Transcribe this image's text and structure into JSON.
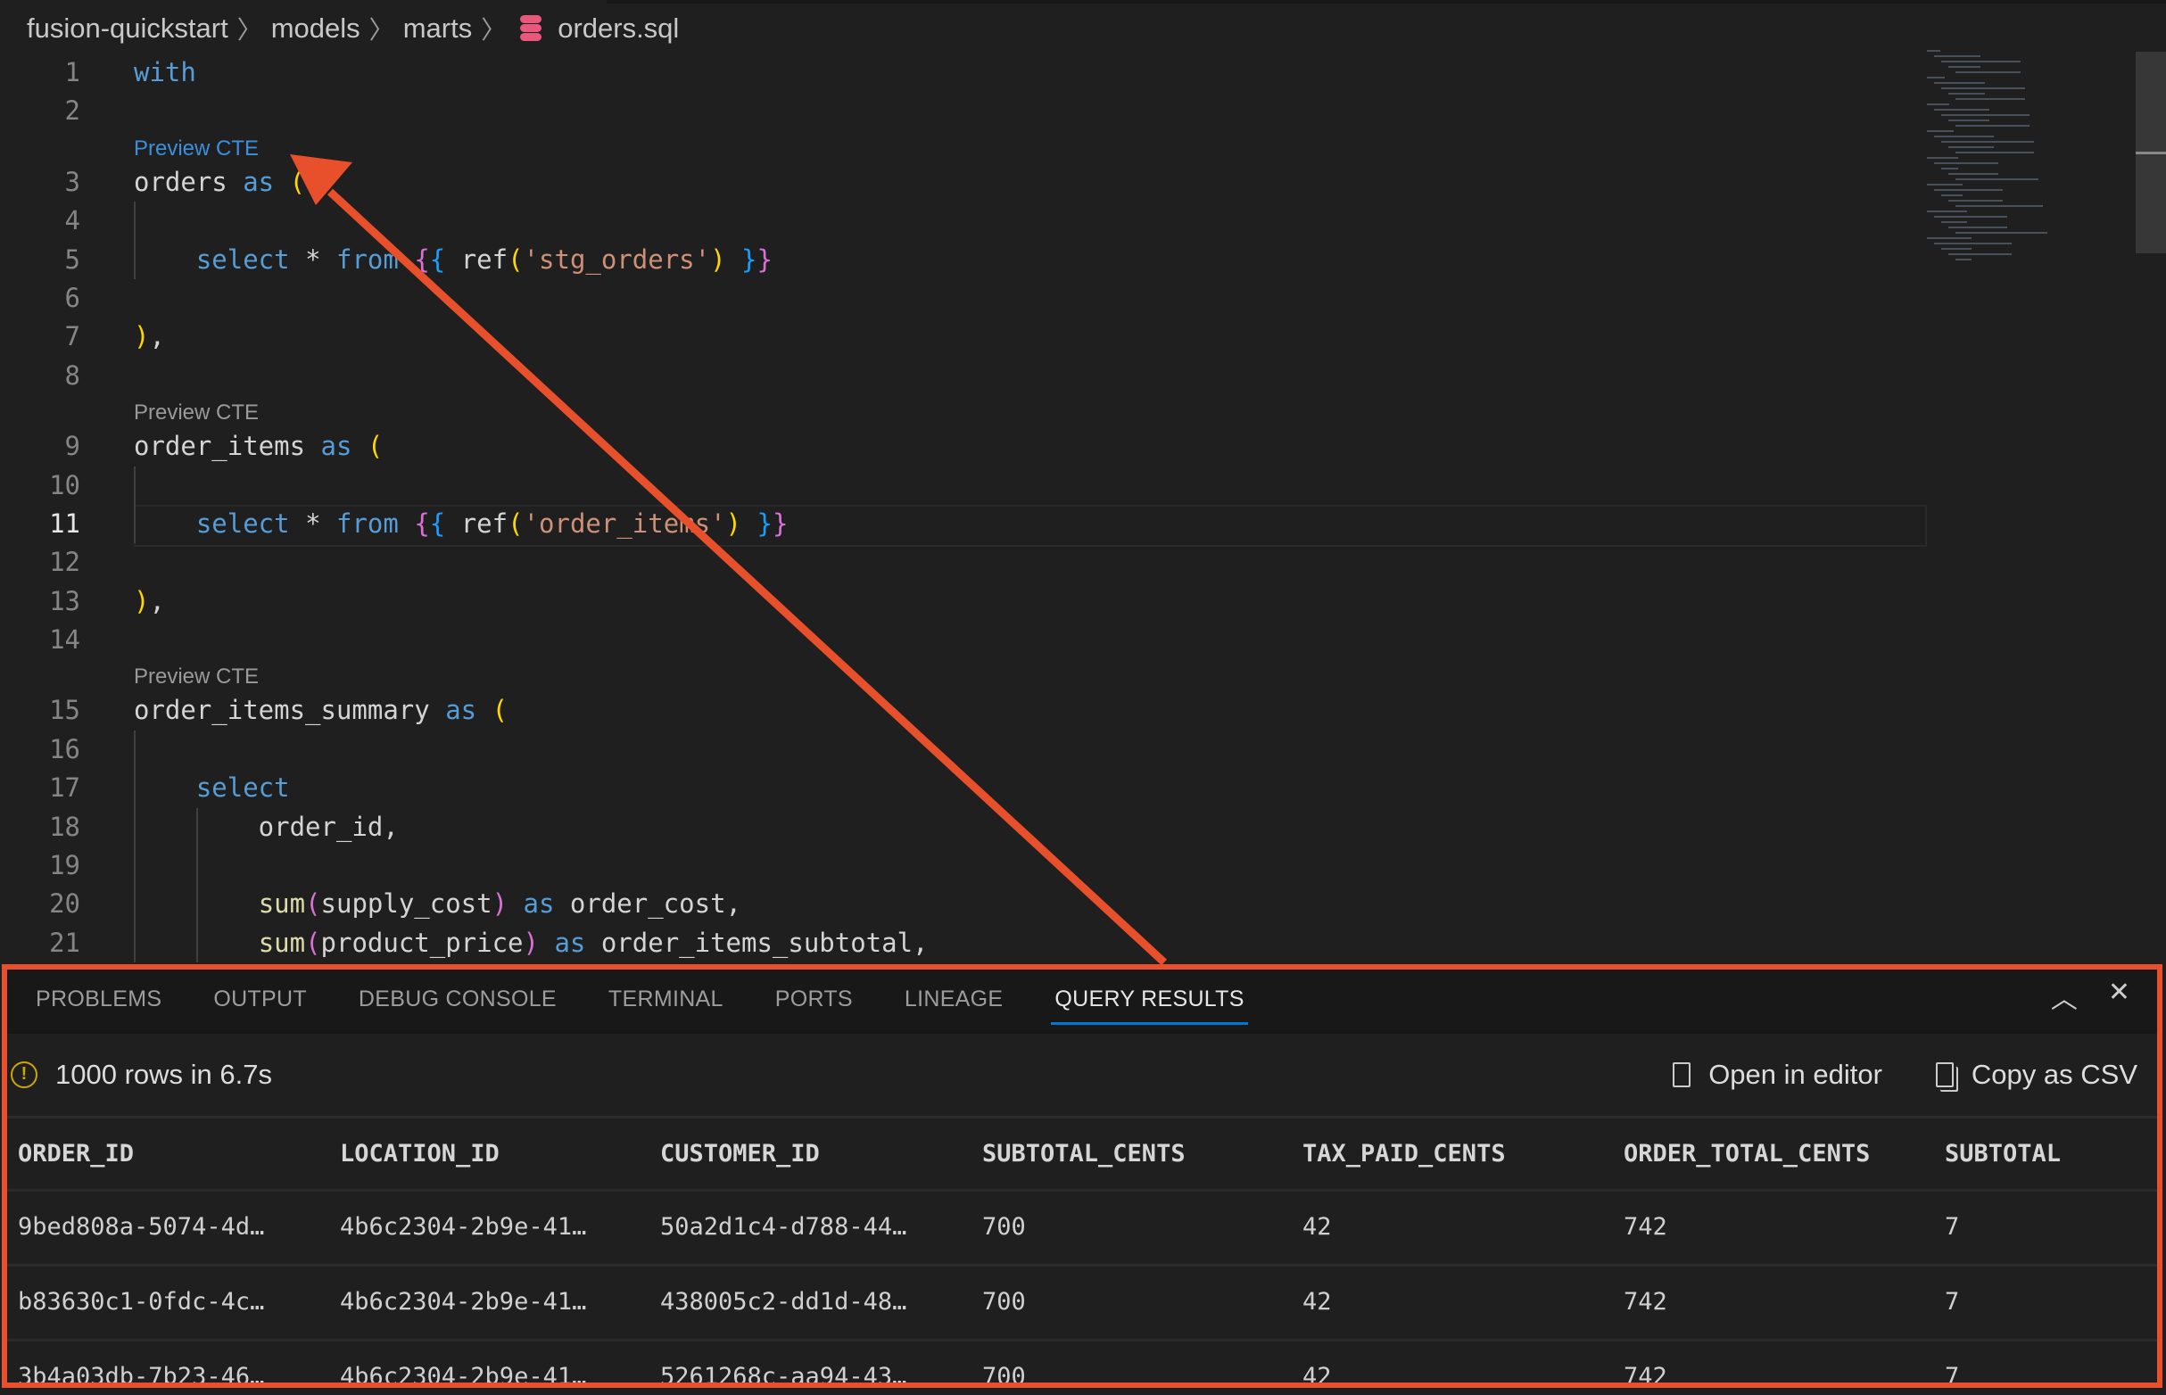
{
  "breadcrumb": [
    "fusion-quickstart",
    "models",
    "marts",
    "orders.sql"
  ],
  "editor": {
    "current_line": 11,
    "lines": [
      {
        "n": 1,
        "t": [
          [
            "with",
            "kw"
          ]
        ]
      },
      {
        "n": 2,
        "t": []
      },
      {
        "preview": "Preview CTE",
        "hot": true
      },
      {
        "n": 3,
        "t": [
          [
            "orders ",
            ""
          ],
          [
            "as",
            "kw"
          ],
          [
            " ",
            ""
          ],
          [
            "(",
            "py"
          ]
        ]
      },
      {
        "n": 4,
        "t": []
      },
      {
        "n": 5,
        "t": [
          [
            "    ",
            ""
          ],
          [
            "select",
            "kw"
          ],
          [
            " * ",
            ""
          ],
          [
            "from",
            "kw"
          ],
          [
            " ",
            ""
          ],
          [
            "{",
            "pp"
          ],
          [
            "{",
            "pb"
          ],
          [
            " ref",
            ""
          ],
          [
            "(",
            "py"
          ],
          [
            "'stg_orders'",
            "str"
          ],
          [
            ")",
            "py"
          ],
          [
            " ",
            ""
          ],
          [
            "}",
            "pb"
          ],
          [
            "}",
            "pp"
          ]
        ]
      },
      {
        "n": 6,
        "t": []
      },
      {
        "n": 7,
        "t": [
          [
            ")",
            "py"
          ],
          [
            ",",
            ""
          ]
        ]
      },
      {
        "n": 8,
        "t": []
      },
      {
        "preview": "Preview CTE"
      },
      {
        "n": 9,
        "t": [
          [
            "order_items ",
            ""
          ],
          [
            "as",
            "kw"
          ],
          [
            " ",
            ""
          ],
          [
            "(",
            "py"
          ]
        ]
      },
      {
        "n": 10,
        "t": []
      },
      {
        "n": 11,
        "t": [
          [
            "    ",
            ""
          ],
          [
            "select",
            "kw"
          ],
          [
            " * ",
            ""
          ],
          [
            "from",
            "kw"
          ],
          [
            " ",
            ""
          ],
          [
            "{",
            "pp"
          ],
          [
            "{",
            "pb"
          ],
          [
            " ref",
            ""
          ],
          [
            "(",
            "py"
          ],
          [
            "'order_items'",
            "str"
          ],
          [
            ")",
            "py"
          ],
          [
            " ",
            ""
          ],
          [
            "}",
            "pb"
          ],
          [
            "}",
            "pp"
          ]
        ]
      },
      {
        "n": 12,
        "t": []
      },
      {
        "n": 13,
        "t": [
          [
            ")",
            "py"
          ],
          [
            ",",
            ""
          ]
        ]
      },
      {
        "n": 14,
        "t": []
      },
      {
        "preview": "Preview CTE"
      },
      {
        "n": 15,
        "t": [
          [
            "order_items_summary ",
            ""
          ],
          [
            "as",
            "kw"
          ],
          [
            " ",
            ""
          ],
          [
            "(",
            "py"
          ]
        ]
      },
      {
        "n": 16,
        "t": []
      },
      {
        "n": 17,
        "t": [
          [
            "    ",
            ""
          ],
          [
            "select",
            "kw"
          ]
        ]
      },
      {
        "n": 18,
        "t": [
          [
            "        order_id,",
            ""
          ]
        ]
      },
      {
        "n": 19,
        "t": []
      },
      {
        "n": 20,
        "t": [
          [
            "        ",
            ""
          ],
          [
            "sum",
            "fn"
          ],
          [
            "(",
            "pp"
          ],
          [
            "supply_cost",
            ""
          ],
          [
            ")",
            "pp"
          ],
          [
            " ",
            ""
          ],
          [
            "as",
            "kw"
          ],
          [
            " order_cost,",
            ""
          ]
        ]
      },
      {
        "n": 21,
        "t": [
          [
            "        ",
            ""
          ],
          [
            "sum",
            "fn"
          ],
          [
            "(",
            "pp"
          ],
          [
            "product_price",
            ""
          ],
          [
            ")",
            "pp"
          ],
          [
            " ",
            ""
          ],
          [
            "as",
            "kw"
          ],
          [
            " order_items_subtotal,",
            ""
          ]
        ]
      }
    ]
  },
  "panel": {
    "tabs": [
      "PROBLEMS",
      "OUTPUT",
      "DEBUG CONSOLE",
      "TERMINAL",
      "PORTS",
      "LINEAGE",
      "QUERY RESULTS"
    ],
    "active_tab": "QUERY RESULTS",
    "controls": {
      "maximize_icon": "chevron-up-icon",
      "close_icon": "close-icon"
    },
    "status": {
      "icon": "warning-icon",
      "text": "1000 rows in 6.7s"
    },
    "actions": {
      "open_in_editor": "Open in editor",
      "copy_csv": "Copy as CSV"
    },
    "columns": [
      "ORDER_ID",
      "LOCATION_ID",
      "CUSTOMER_ID",
      "SUBTOTAL_CENTS",
      "TAX_PAID_CENTS",
      "ORDER_TOTAL_CENTS",
      "SUBTOTAL"
    ],
    "rows": [
      [
        "9bed808a-5074-4d…",
        "4b6c2304-2b9e-41…",
        "50a2d1c4-d788-44…",
        "700",
        "42",
        "742",
        "7"
      ],
      [
        "b83630c1-0fdc-4c…",
        "4b6c2304-2b9e-41…",
        "438005c2-dd1d-48…",
        "700",
        "42",
        "742",
        "7"
      ],
      [
        "3b4a03db-7b23-46…",
        "4b6c2304-2b9e-41…",
        "5261268c-aa94-43…",
        "700",
        "42",
        "742",
        "7"
      ]
    ]
  },
  "colors": {
    "annotation": "#e8502c",
    "accent": "#0078d4",
    "warning": "#cca700"
  }
}
